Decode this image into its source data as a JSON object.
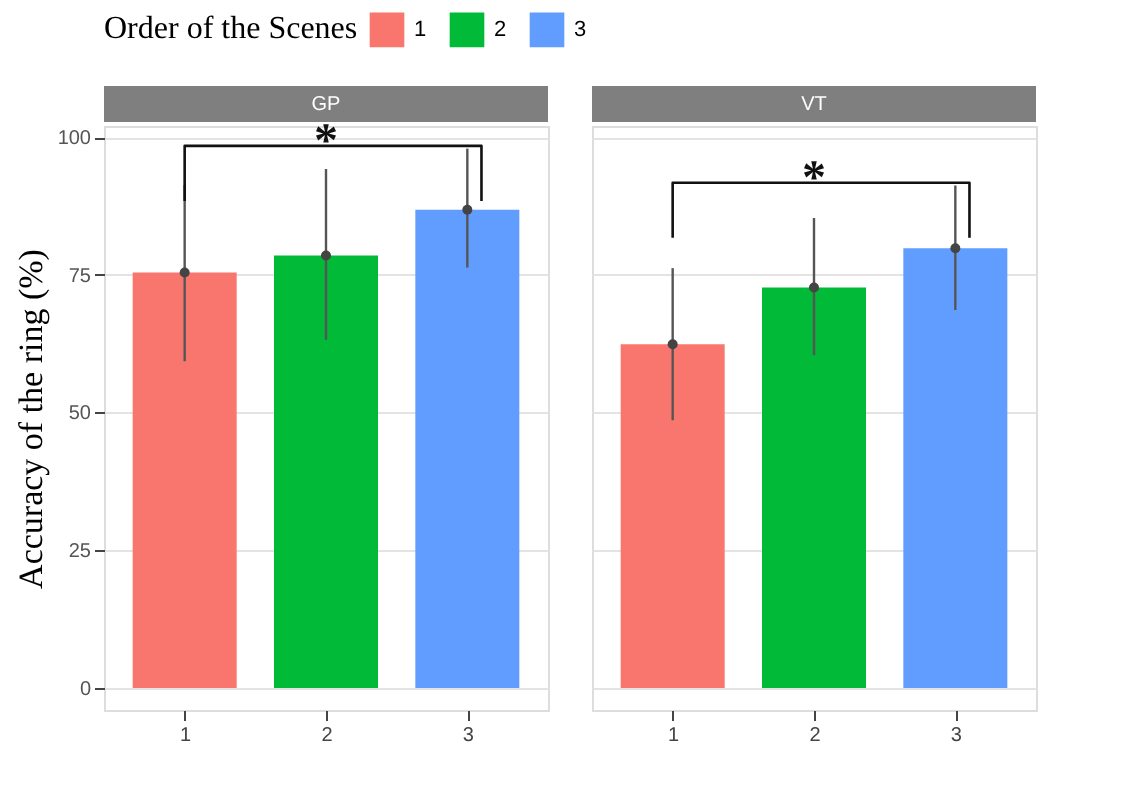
{
  "chart_data": [
    {
      "type": "bar",
      "title": "GP",
      "ylabel": "Accuracy of the ring (%)",
      "legend_title": "Order of the Scenes",
      "legend": "top",
      "categories": [
        "1",
        "2",
        "3"
      ],
      "series": [
        {
          "name": "1",
          "color": "#f8766d",
          "values": [
            75.4,
            null,
            null
          ],
          "errors": [
            [
              59.3,
              91.3
            ],
            null,
            null
          ]
        },
        {
          "name": "2",
          "color": "#00ba38",
          "values": [
            null,
            78.5,
            null
          ],
          "errors": [
            null,
            [
              63.2,
              94.2
            ],
            null
          ]
        },
        {
          "name": "3",
          "color": "#619cff",
          "values": [
            null,
            null,
            86.8
          ],
          "errors": [
            null,
            null,
            [
              76.3,
              97.9
            ]
          ]
        },
        {
          "type": "scatter",
          "color": "#444444",
          "x": [
            "1",
            "2",
            "3"
          ],
          "values": [
            75.4,
            78.5,
            86.8
          ]
        }
      ],
      "ylim": [
        -4,
        102
      ],
      "yticks": [
        0,
        25,
        50,
        75,
        100
      ],
      "grid": "y",
      "annotations": [
        "*"
      ]
    },
    {
      "type": "bar",
      "title": "VT",
      "categories": [
        "1",
        "2",
        "3"
      ],
      "series": [
        {
          "color": "#f8766d",
          "values": [
            62.4,
            null,
            null
          ],
          "errors": [
            [
              48.6,
              76.2
            ],
            null,
            null
          ]
        },
        {
          "color": "#00ba38",
          "values": [
            null,
            72.7,
            null
          ],
          "errors": [
            null,
            [
              60.4,
              85.3
            ],
            null
          ]
        },
        {
          "color": "#619cff",
          "values": [
            null,
            null,
            79.8
          ],
          "errors": [
            null,
            null,
            [
              68.6,
              91.2
            ]
          ]
        },
        {
          "type": "scatter",
          "color": "#444444",
          "x": [
            "1",
            "2",
            "3"
          ],
          "values": [
            62.4,
            72.7,
            79.8
          ]
        }
      ],
      "ylim": [
        -4,
        102
      ],
      "yticks": [
        0,
        25,
        50,
        75,
        100
      ],
      "grid": "y",
      "tick_labels": "x",
      "annotations": [
        "*"
      ]
    }
  ]
}
